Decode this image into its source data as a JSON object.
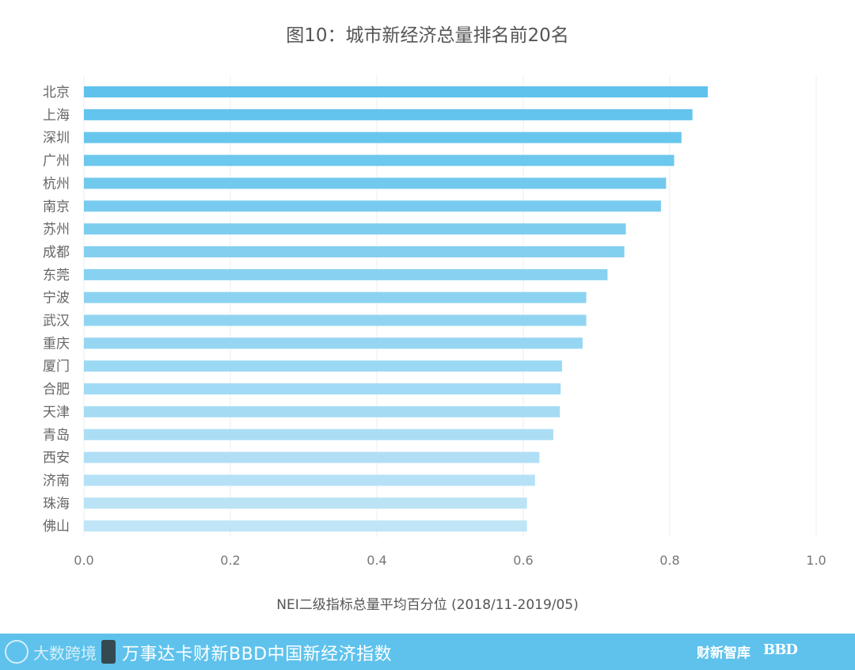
{
  "chart_data": {
    "type": "bar",
    "orientation": "horizontal",
    "title": "图10：城市新经济总量排名前20名",
    "xlabel": "NEI二级指标总量平均百分位 (2018/11-2019/05)",
    "ylabel": "",
    "xlim": [
      0.0,
      1.0
    ],
    "xticks": [
      "0.0",
      "0.2",
      "0.4",
      "0.6",
      "0.8",
      "1.0"
    ],
    "grid": "vertical",
    "categories": [
      "北京",
      "上海",
      "深圳",
      "广州",
      "杭州",
      "南京",
      "苏州",
      "成都",
      "东莞",
      "宁波",
      "武汉",
      "重庆",
      "厦门",
      "合肥",
      "天津",
      "青岛",
      "西安",
      "济南",
      "珠海",
      "佛山"
    ],
    "values": [
      0.852,
      0.831,
      0.816,
      0.806,
      0.795,
      0.788,
      0.74,
      0.738,
      0.715,
      0.686,
      0.686,
      0.681,
      0.653,
      0.651,
      0.65,
      0.641,
      0.622,
      0.616,
      0.605,
      0.605
    ],
    "colors": {
      "start": "#5ec2ec",
      "end": "#bfe5f7"
    }
  },
  "footer": {
    "watermark": "大数跨境",
    "index_title": "万事达卡财新BBD中国新经济指数",
    "brand_caixin": "财新智库",
    "brand_bbd": "BBD",
    "background": "#5ec2ec"
  }
}
